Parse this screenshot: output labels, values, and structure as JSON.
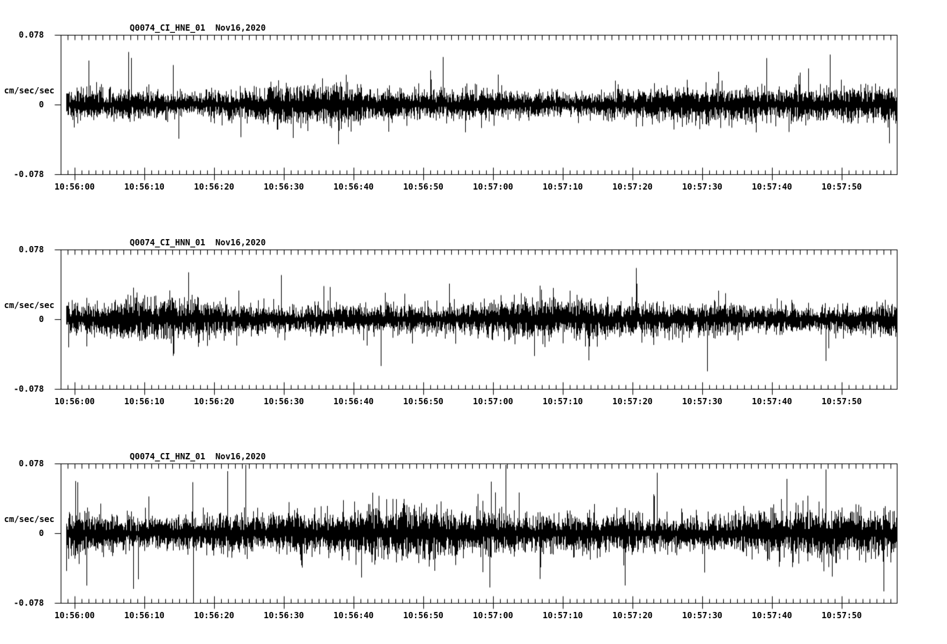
{
  "page": {
    "background_color": "#ffffff",
    "ink_color": "#000000",
    "description": "Three-component strong-motion seismogram record section, black traces on white"
  },
  "chart_data": [
    {
      "type": "line",
      "variant": "seismogram",
      "title": "Q0074_CI_HNE_01  Nov16,2020",
      "channel_id": "Q0074_CI_HNE_01",
      "date_label": "Nov16,2020",
      "ylabel": "cm/sec/sec",
      "ylim": [
        -0.078,
        0.078
      ],
      "ytick_labels": [
        "0.078",
        "0",
        "-0.078"
      ],
      "xtick_labels": [
        "10:56:00",
        "10:56:10",
        "10:56:20",
        "10:56:30",
        "10:56:40",
        "10:56:50",
        "10:57:00",
        "10:57:10",
        "10:57:20",
        "10:57:30",
        "10:57:40",
        "10:57:50"
      ],
      "x_major_step_sec": 10,
      "x_minor_step_sec": 1,
      "grid": false,
      "legend": false,
      "signal": {
        "kind": "continuous broadband noise",
        "seed": 7101,
        "rms_cm_s2": 0.0078,
        "typical_peak_cm_s2": 0.031,
        "max_peak_cm_s2": 0.057,
        "spike_rate": 0.05
      }
    },
    {
      "type": "line",
      "variant": "seismogram",
      "title": "Q0074_CI_HNN_01  Nov16,2020",
      "channel_id": "Q0074_CI_HNN_01",
      "date_label": "Nov16,2020",
      "ylabel": "cm/sec/sec",
      "ylim": [
        -0.078,
        0.078
      ],
      "ytick_labels": [
        "0.078",
        "0",
        "-0.078"
      ],
      "xtick_labels": [
        "10:56:00",
        "10:56:10",
        "10:56:20",
        "10:56:30",
        "10:56:40",
        "10:56:50",
        "10:57:00",
        "10:57:10",
        "10:57:20",
        "10:57:30",
        "10:57:40",
        "10:57:50"
      ],
      "x_major_step_sec": 10,
      "x_minor_step_sec": 1,
      "grid": false,
      "legend": false,
      "signal": {
        "kind": "continuous broadband noise",
        "seed": 7202,
        "rms_cm_s2": 0.0083,
        "typical_peak_cm_s2": 0.033,
        "max_peak_cm_s2": 0.055,
        "spike_rate": 0.055
      }
    },
    {
      "type": "line",
      "variant": "seismogram",
      "title": "Q0074_CI_HNZ_01  Nov16,2020",
      "channel_id": "Q0074_CI_HNZ_01",
      "date_label": "Nov16,2020",
      "ylabel": "cm/sec/sec",
      "ylim": [
        -0.078,
        0.078
      ],
      "ytick_labels": [
        "0.078",
        "0",
        "-0.078"
      ],
      "xtick_labels": [
        "10:56:00",
        "10:56:10",
        "10:56:20",
        "10:56:30",
        "10:56:40",
        "10:56:50",
        "10:57:00",
        "10:57:10",
        "10:57:20",
        "10:57:30",
        "10:57:40",
        "10:57:50"
      ],
      "x_major_step_sec": 10,
      "x_minor_step_sec": 1,
      "grid": false,
      "legend": false,
      "signal": {
        "kind": "continuous broadband noise",
        "seed": 7303,
        "rms_cm_s2": 0.0105,
        "typical_peak_cm_s2": 0.042,
        "max_peak_cm_s2": 0.06,
        "spike_rate": 0.07
      }
    }
  ]
}
